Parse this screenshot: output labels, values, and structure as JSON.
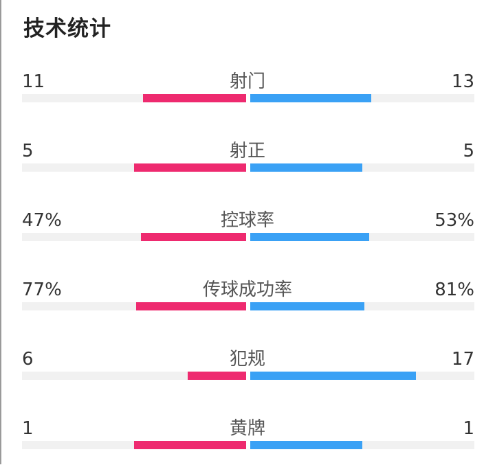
{
  "title": "技术统计",
  "colors": {
    "home": "#ee2a6f",
    "away": "#3aa1f5",
    "track": "#f1f1f1"
  },
  "stats": [
    {
      "label": "射门",
      "home": "11",
      "away": "13",
      "home_fill": 0.46,
      "away_fill": 0.54
    },
    {
      "label": "射正",
      "home": "5",
      "away": "5",
      "home_fill": 0.5,
      "away_fill": 0.5
    },
    {
      "label": "控球率",
      "home": "47%",
      "away": "53%",
      "home_fill": 0.47,
      "away_fill": 0.53
    },
    {
      "label": "传球成功率",
      "home": "77%",
      "away": "81%",
      "home_fill": 0.49,
      "away_fill": 0.51
    },
    {
      "label": "犯规",
      "home": "6",
      "away": "17",
      "home_fill": 0.26,
      "away_fill": 0.74
    },
    {
      "label": "黄牌",
      "home": "1",
      "away": "1",
      "home_fill": 0.5,
      "away_fill": 0.5
    }
  ]
}
